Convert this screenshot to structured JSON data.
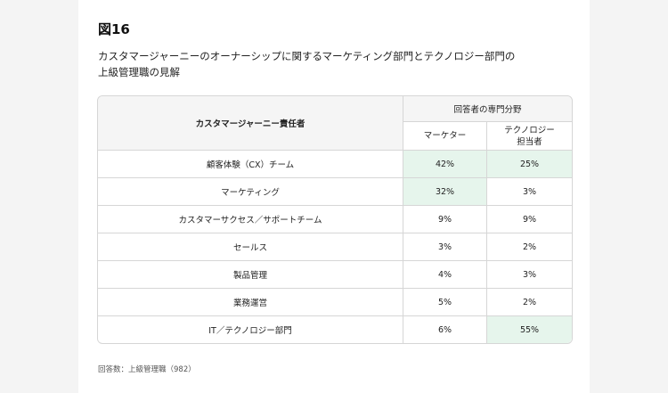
{
  "figure_label": "図16",
  "subtitle_line1": "カスタマージャーニーのオーナーシップに関するマーケティング部門とテクノロジー部門の",
  "subtitle_line2": "上級管理職の見解",
  "table": {
    "row_header": "カスタマージャーニー責任者",
    "group_header": "回答者の専門分野",
    "col1": "マーケター",
    "col2_line1": "テクノロジー",
    "col2_line2": "担当者",
    "rows": [
      {
        "label": "顧客体験（CX）チーム",
        "marketer": "42%",
        "tech": "25%"
      },
      {
        "label": "マーケティング",
        "marketer": "32%",
        "tech": "3%"
      },
      {
        "label": "カスタマーサクセス／サポートチーム",
        "marketer": "9%",
        "tech": "9%"
      },
      {
        "label": "セールス",
        "marketer": "3%",
        "tech": "2%"
      },
      {
        "label": "製品管理",
        "marketer": "4%",
        "tech": "3%"
      },
      {
        "label": "業務運営",
        "marketer": "5%",
        "tech": "2%"
      },
      {
        "label": "IT／テクノロジー部門",
        "marketer": "6%",
        "tech": "55%"
      }
    ]
  },
  "highlight_color": "#e6f5ec",
  "footnote": "回答数：上級管理職（982）"
}
